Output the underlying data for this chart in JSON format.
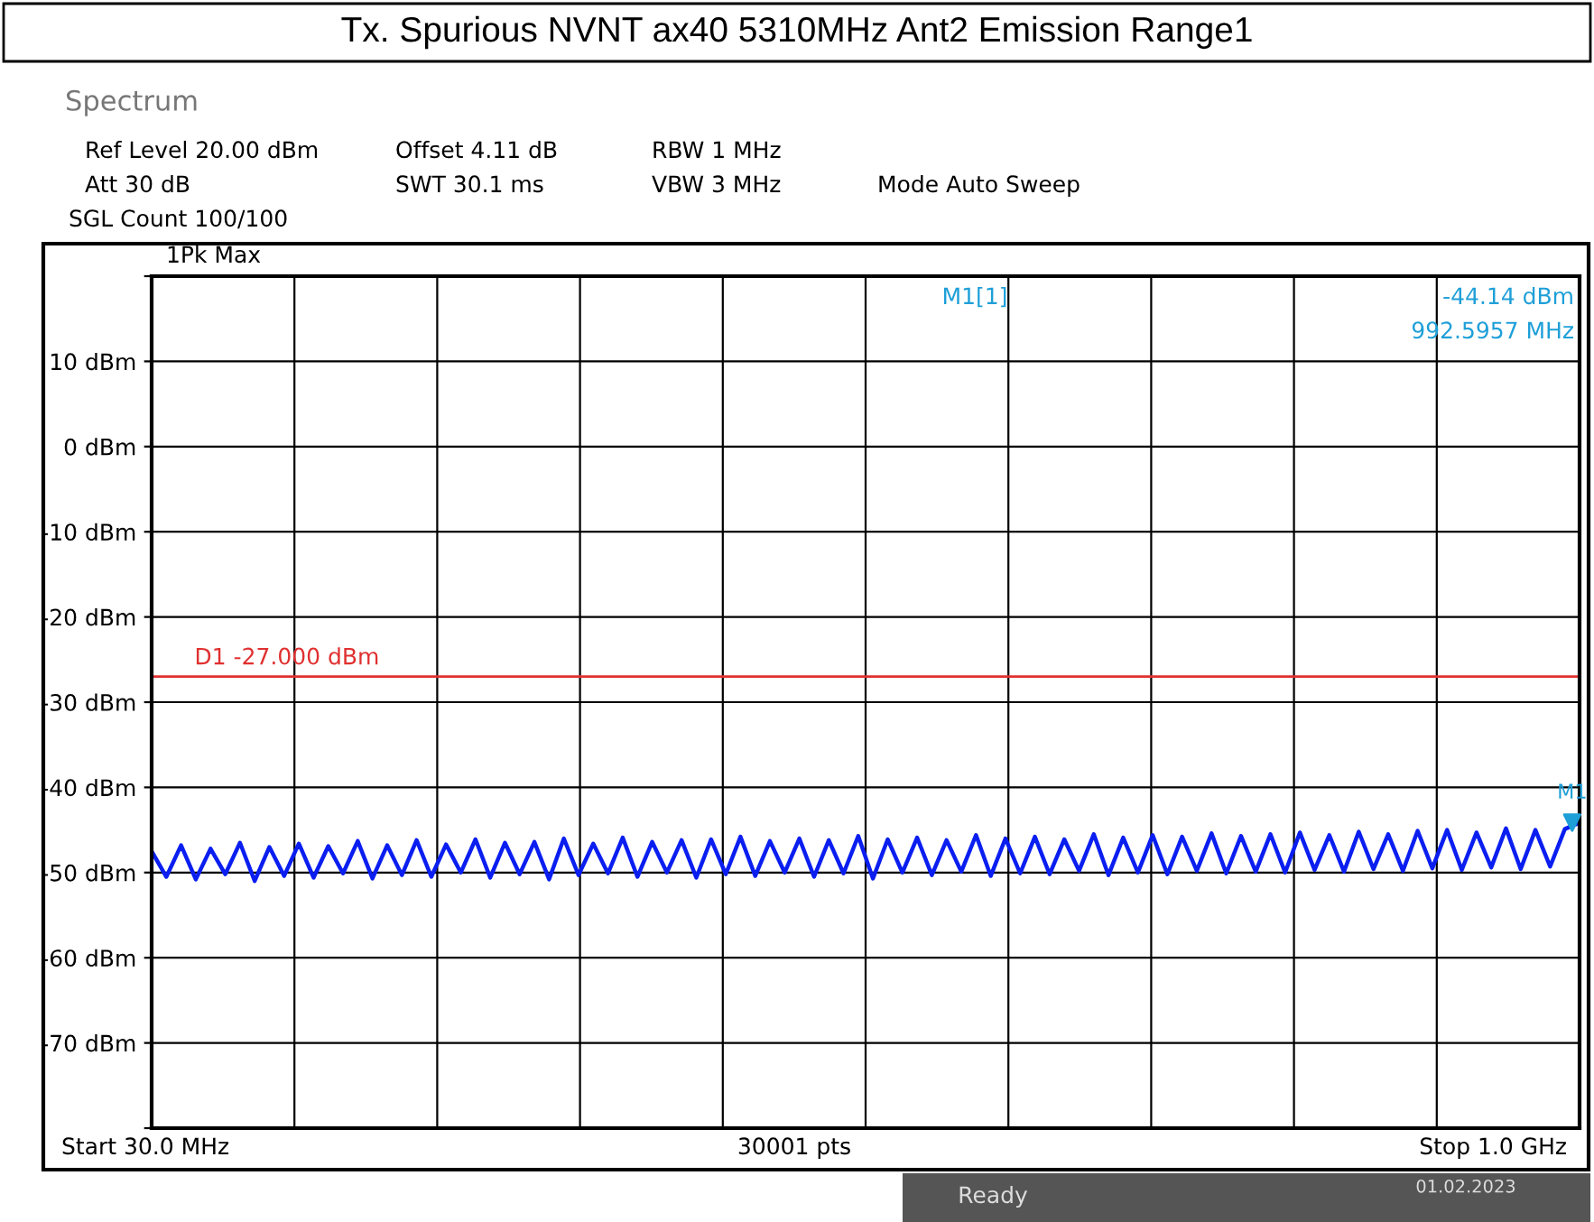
{
  "chart_data": {
    "type": "line",
    "title": "Tx. Spurious NVNT ax40 5310MHz Ant2 Emission Range1",
    "categories": [
      null,
      null,
      null,
      null,
      null,
      null,
      null,
      null,
      null,
      null,
      null,
      null,
      null,
      null,
      null,
      null,
      null,
      null,
      null,
      null,
      null,
      null,
      null,
      null,
      null,
      null,
      null,
      null,
      null,
      null,
      null,
      null,
      null,
      null,
      null,
      null,
      null,
      null,
      null,
      null,
      null,
      null,
      null,
      null,
      null,
      null,
      null,
      null,
      null,
      null,
      null,
      null,
      null,
      null,
      null,
      null,
      null,
      null,
      null,
      null,
      null,
      null,
      null,
      null,
      null,
      null,
      null,
      null,
      null,
      null,
      null,
      null,
      null,
      null,
      null,
      null,
      null,
      null,
      null,
      null,
      null,
      null,
      null,
      null,
      null,
      null,
      null,
      null,
      null,
      null,
      null,
      null,
      null,
      null,
      null,
      null,
      null,
      null
    ],
    "ylim": [
      -80,
      20
    ],
    "yticks": [
      {
        "value": -80,
        "label": null
      },
      {
        "value": -70,
        "label": "-70 dBm"
      },
      {
        "value": -60,
        "label": "-60 dBm"
      },
      {
        "value": -50,
        "label": "-50 dBm"
      },
      {
        "value": -40,
        "label": "-40 dBm"
      },
      {
        "value": -30,
        "label": "-30 dBm"
      },
      {
        "value": -20,
        "label": "-20 dBm"
      },
      {
        "value": -10,
        "label": "-10 dBm"
      },
      {
        "value": 0,
        "label": "0 dBm"
      },
      {
        "value": 10,
        "label": "10 dBm"
      },
      {
        "value": 20,
        "label": null
      }
    ],
    "grid": true,
    "legend": false,
    "line_style": "solid",
    "ref_lines": [
      {
        "axis": "y",
        "value": -27,
        "label": "D1 -27.000 dBm",
        "color": "#e03030"
      }
    ],
    "series": [
      {
        "color": "#0a1ef0",
        "values": [
          -47.5,
          -50.5,
          -46.8,
          -50.8,
          -47.2,
          -50.2,
          -46.5,
          -51.0,
          -47.0,
          -50.4,
          -46.6,
          -50.6,
          -46.9,
          -50.1,
          -46.3,
          -50.7,
          -46.8,
          -50.3,
          -46.2,
          -50.5,
          -46.7,
          -50.0,
          -46.1,
          -50.6,
          -46.5,
          -50.2,
          -46.4,
          -50.8,
          -46.0,
          -50.3,
          -46.6,
          -50.1,
          -45.9,
          -50.5,
          -46.4,
          -50.0,
          -46.2,
          -50.6,
          -46.1,
          -50.2,
          -45.8,
          -50.4,
          -46.3,
          -50.0,
          -46.0,
          -50.5,
          -46.2,
          -50.1,
          -45.7,
          -50.7,
          -46.1,
          -50.0,
          -45.9,
          -50.3,
          -46.2,
          -49.9,
          -45.6,
          -50.4,
          -46.0,
          -50.1,
          -45.8,
          -50.2,
          -46.1,
          -49.8,
          -45.5,
          -50.3,
          -45.9,
          -50.0,
          -45.6,
          -50.2,
          -45.8,
          -49.8,
          -45.4,
          -50.1,
          -45.7,
          -49.9,
          -45.5,
          -50.0,
          -45.3,
          -49.7,
          -45.6,
          -49.9,
          -45.2,
          -49.6,
          -45.5,
          -49.8,
          -45.1,
          -49.5,
          -45.0,
          -49.7,
          -45.3,
          -49.4,
          -44.8,
          -49.6,
          -45.0,
          -49.3,
          -44.9,
          -44.14
        ]
      }
    ],
    "annotations": [
      "Spectrum",
      "Ref Level 20.00 dBm",
      "Offset 4.11 dB",
      "RBW 1 MHz",
      "Att 30 dB",
      "SWT 30.1 ms",
      "VBW 3 MHz",
      "Mode Auto Sweep",
      "SGL Count 100/100",
      "1Pk Max",
      "M1[1]",
      "-44.14 dBm",
      "992.5957 MHz",
      "Start 30.0 MHz",
      "30001 pts",
      "Stop 1.0 GHz",
      "Ready",
      "01.02.2023",
      {
        "text": "M1",
        "y": -44.14
      }
    ]
  }
}
